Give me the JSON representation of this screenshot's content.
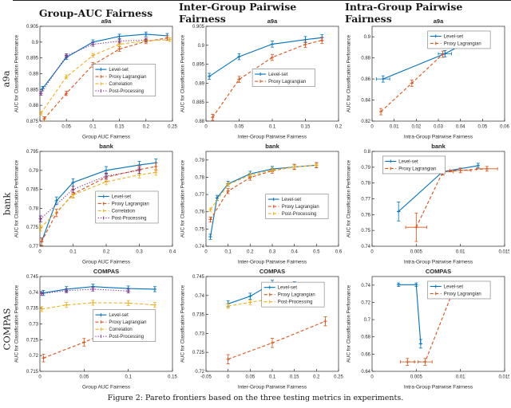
{
  "page": {
    "column_headers": [
      "Group-AUC Fairness",
      "Inter-Group Pairwise Fairness",
      "Intra-Group Pairwise Fairness"
    ],
    "row_labels": [
      "a9a",
      "bank",
      "COMPAS"
    ],
    "caption": "Figure 2: Pareto frontiers based on the three testing metrics in experiments."
  },
  "palette": {
    "level_set": "#0072BD",
    "proxy": "#D95319",
    "correlation": "#EDB120",
    "post": "#7E2F8E"
  },
  "chart_data": [
    {
      "type": "line",
      "title": "a9a",
      "xlabel": "Group AUC Fairness",
      "ylabel": "AUC for Classification Performance",
      "xlim": [
        0,
        0.25
      ],
      "xticks": [
        0,
        0.05,
        0.1,
        0.15,
        0.2,
        0.25
      ],
      "ylim": [
        0.875,
        0.905
      ],
      "yticks": [
        0.875,
        0.88,
        0.885,
        0.89,
        0.895,
        0.9,
        0.905
      ],
      "legend": {
        "x": 0.4,
        "y": 0.4
      },
      "series": [
        {
          "name": "Level-set",
          "style": "level_set",
          "x": [
            0.005,
            0.05,
            0.1,
            0.15,
            0.2,
            0.24
          ],
          "y": [
            0.8853,
            0.8952,
            0.9,
            0.9018,
            0.9025,
            0.902
          ],
          "yerr": 0.0007
        },
        {
          "name": "Proxy Lagrangian",
          "style": "proxy",
          "x": [
            0.008,
            0.05,
            0.1,
            0.15,
            0.2,
            0.24
          ],
          "y": [
            0.8757,
            0.8838,
            0.8928,
            0.8978,
            0.9002,
            0.9013
          ],
          "yerr": 0.0007
        },
        {
          "name": "Correlation",
          "style": "correlation",
          "x": [
            0.002,
            0.05,
            0.1,
            0.15,
            0.2,
            0.245
          ],
          "y": [
            0.8775,
            0.889,
            0.8958,
            0.8993,
            0.9004,
            0.9008
          ],
          "yerr": 0.0006
        },
        {
          "name": "Post-Processing",
          "style": "post",
          "x": [
            0.002,
            0.05,
            0.1,
            0.15,
            0.2
          ],
          "y": [
            0.8838,
            0.8957,
            0.8993,
            0.9003,
            0.9007
          ],
          "yerr": 0.0006
        }
      ]
    },
    {
      "type": "line",
      "title": "a9a",
      "xlabel": "Inter-Group Pairwise Fairness",
      "ylabel": "AUC for Classification Performance",
      "xlim": [
        0,
        0.2
      ],
      "xticks": [
        0,
        0.05,
        0.1,
        0.15,
        0.2
      ],
      "ylim": [
        0.88,
        0.905
      ],
      "yticks": [
        0.88,
        0.885,
        0.89,
        0.895,
        0.9,
        0.905
      ],
      "legend": {
        "x": 0.35,
        "y": 0.45
      },
      "series": [
        {
          "name": "Level-set",
          "style": "level_set",
          "x": [
            0.005,
            0.05,
            0.1,
            0.15,
            0.175
          ],
          "y": [
            0.8918,
            0.897,
            0.9003,
            0.9015,
            0.902
          ],
          "yerr": 0.0008
        },
        {
          "name": "Proxy Lagrangian",
          "style": "proxy",
          "x": [
            0.01,
            0.05,
            0.1,
            0.15,
            0.175
          ],
          "y": [
            0.881,
            0.891,
            0.8968,
            0.9002,
            0.9013
          ],
          "yerr": 0.0008
        }
      ]
    },
    {
      "type": "line",
      "title": "a9a",
      "xlabel": "Intra-Group Pairwise Fairness",
      "ylabel": "AUC for Classification Performance",
      "xlim": [
        0,
        0.06
      ],
      "xticks": [
        0,
        0.01,
        0.02,
        0.03,
        0.04,
        0.05,
        0.06
      ],
      "ylim": [
        0.82,
        0.91
      ],
      "yticks": [
        0.82,
        0.84,
        0.86,
        0.88,
        0.9
      ],
      "legend": {
        "x": 0.42,
        "y": 0.05
      },
      "series": [
        {
          "name": "Level-set",
          "style": "level_set",
          "x": [
            0.005,
            0.033,
            0.048
          ],
          "y": [
            0.86,
            0.884,
            0.9005
          ],
          "yerr": 0.003,
          "xerr": 0.003
        },
        {
          "name": "Proxy Lagrangian",
          "style": "proxy",
          "x": [
            0.004,
            0.018,
            0.032
          ],
          "y": [
            0.829,
            0.856,
            0.8835
          ],
          "yerr": 0.003
        }
      ]
    },
    {
      "type": "line",
      "title": "bank",
      "xlabel": "Group AUC Fairness",
      "ylabel": "AUC for Classification Performance",
      "xlim": [
        0,
        0.4
      ],
      "xticks": [
        0,
        0.1,
        0.2,
        0.3,
        0.4
      ],
      "ylim": [
        0.77,
        0.795
      ],
      "yticks": [
        0.77,
        0.775,
        0.78,
        0.785,
        0.79,
        0.795
      ],
      "legend": {
        "x": 0.42,
        "y": 0.42
      },
      "series": [
        {
          "name": "Level-set",
          "style": "level_set",
          "x": [
            0.005,
            0.05,
            0.1,
            0.2,
            0.3,
            0.35
          ],
          "y": [
            0.7712,
            0.782,
            0.7868,
            0.79,
            0.7914,
            0.792
          ],
          "yerr": 0.001
        },
        {
          "name": "Proxy Lagrangian",
          "style": "proxy",
          "x": [
            0.005,
            0.05,
            0.1,
            0.2,
            0.3,
            0.35
          ],
          "y": [
            0.7712,
            0.7788,
            0.7838,
            0.7882,
            0.7902,
            0.791
          ],
          "yerr": 0.001
        },
        {
          "name": "Correlation",
          "style": "correlation",
          "x": [
            0.002,
            0.1,
            0.2,
            0.3,
            0.35
          ],
          "y": [
            0.7748,
            0.7835,
            0.787,
            0.7888,
            0.7895
          ],
          "yerr": 0.0008
        },
        {
          "name": "Post-Processing",
          "style": "post",
          "x": [
            0.002,
            0.1,
            0.2,
            0.3
          ],
          "y": [
            0.7772,
            0.785,
            0.7885,
            0.79
          ],
          "yerr": 0.0008
        }
      ]
    },
    {
      "type": "line",
      "title": "bank",
      "xlabel": "Inter-Group Pairwise Fairness",
      "ylabel": "AUC for Classification Performance",
      "xlim": [
        0,
        0.6
      ],
      "xticks": [
        0,
        0.1,
        0.2,
        0.3,
        0.4,
        0.5,
        0.6
      ],
      "ylim": [
        0.74,
        0.795
      ],
      "yticks": [
        0.74,
        0.75,
        0.76,
        0.77,
        0.78,
        0.79
      ],
      "legend": {
        "x": 0.45,
        "y": 0.45
      },
      "series": [
        {
          "name": "Level-set",
          "style": "level_set",
          "x": [
            0.02,
            0.05,
            0.1,
            0.2,
            0.3,
            0.4,
            0.5
          ],
          "y": [
            0.7455,
            0.768,
            0.7762,
            0.782,
            0.7848,
            0.786,
            0.787
          ],
          "yerr": 0.0015
        },
        {
          "name": "Proxy Lagrangian",
          "style": "proxy",
          "x": [
            0.02,
            0.1,
            0.2,
            0.3,
            0.4,
            0.5
          ],
          "y": [
            0.7555,
            0.772,
            0.7798,
            0.7838,
            0.786,
            0.787
          ],
          "yerr": 0.0015
        },
        {
          "name": "Post-Processing",
          "style": "correlation",
          "x": [
            0.02,
            0.1,
            0.2,
            0.3,
            0.4,
            0.5
          ],
          "y": [
            0.7612,
            0.7758,
            0.7812,
            0.7842,
            0.786,
            0.787
          ],
          "yerr": 0.001
        }
      ]
    },
    {
      "type": "line",
      "title": "bank",
      "xlabel": "Intra-Group Pairwise Fairness",
      "ylabel": "AUC for Classification Performance",
      "xlim": [
        0,
        0.015
      ],
      "xticks": [
        0,
        0.005,
        0.01,
        0.015
      ],
      "ylim": [
        0.74,
        0.8
      ],
      "yticks": [
        0.74,
        0.75,
        0.76,
        0.77,
        0.78,
        0.79,
        0.8
      ],
      "legend": {
        "x": 0.08,
        "y": 0.05
      },
      "series": [
        {
          "name": "Level-set",
          "style": "level_set",
          "x": [
            0.003,
            0.008,
            0.012
          ],
          "y": [
            0.762,
            0.7872,
            0.791
          ],
          "yerr": [
            0.006,
            0.002,
            0.0015
          ]
        },
        {
          "name": "Proxy Lagrangian",
          "style": "proxy",
          "x": [
            0.005,
            0.008,
            0.01,
            0.013
          ],
          "y": [
            0.752,
            0.787,
            0.788,
            0.789
          ],
          "yerr": [
            0.009,
            0.002,
            0.0015,
            0.0015
          ],
          "xerr": 0.0012
        }
      ]
    },
    {
      "type": "line",
      "title": "COMPAS",
      "xlabel": "Group AUC Fairness",
      "ylabel": "AUC for Classification Performance",
      "xlim": [
        0,
        0.15
      ],
      "xticks": [
        0,
        0.05,
        0.1,
        0.15
      ],
      "ylim": [
        0.715,
        0.745
      ],
      "yticks": [
        0.715,
        0.72,
        0.725,
        0.73,
        0.735,
        0.74,
        0.745
      ],
      "legend": {
        "x": 0.4,
        "y": 0.35
      },
      "series": [
        {
          "name": "Level-set",
          "style": "level_set",
          "x": [
            0.004,
            0.03,
            0.06,
            0.1,
            0.13
          ],
          "y": [
            0.7398,
            0.741,
            0.7418,
            0.7412,
            0.741
          ],
          "yerr": 0.0008
        },
        {
          "name": "Proxy Lagrangian",
          "style": "proxy",
          "x": [
            0.004,
            0.05,
            0.08,
            0.11
          ],
          "y": [
            0.7192,
            0.7242,
            0.7278,
            0.732
          ],
          "yerr": 0.0012
        },
        {
          "name": "Correlation",
          "style": "correlation",
          "x": [
            0.002,
            0.03,
            0.06,
            0.1,
            0.13
          ],
          "y": [
            0.7347,
            0.736,
            0.7367,
            0.7366,
            0.736
          ],
          "yerr": 0.0008
        },
        {
          "name": "Post-Processing",
          "style": "post",
          "x": [
            0.002,
            0.03,
            0.06,
            0.1
          ],
          "y": [
            0.7396,
            0.7405,
            0.741,
            0.7404
          ],
          "yerr": 0.0006
        }
      ]
    },
    {
      "type": "line",
      "title": "COMPAS",
      "xlabel": "Inter-Group Pairwise Fairness",
      "ylabel": "AUC for Classification Performance",
      "xlim": [
        -0.05,
        0.25
      ],
      "xticks": [
        -0.05,
        0,
        0.05,
        0.1,
        0.15,
        0.2,
        0.25
      ],
      "ylim": [
        0.72,
        0.745
      ],
      "yticks": [
        0.72,
        0.725,
        0.73,
        0.735,
        0.74,
        0.745
      ],
      "legend": {
        "x": 0.42,
        "y": 0.06
      },
      "series": [
        {
          "name": "Level-set",
          "style": "level_set",
          "x": [
            0,
            0.05,
            0.1,
            0.15,
            0.2
          ],
          "y": [
            0.7378,
            0.7398,
            0.7432,
            0.7428,
            0.7422
          ],
          "yerr": 0.0008
        },
        {
          "name": "Proxy Lagrangian",
          "style": "proxy",
          "x": [
            0,
            0.1,
            0.22
          ],
          "y": [
            0.7232,
            0.7275,
            0.7332
          ],
          "yerr": 0.0012
        },
        {
          "name": "Post-Processing",
          "style": "correlation",
          "x": [
            0,
            0.05,
            0.1,
            0.15,
            0.2
          ],
          "y": [
            0.7372,
            0.7382,
            0.7392,
            0.7398,
            0.7398
          ],
          "yerr": 0.0006
        }
      ]
    },
    {
      "type": "line",
      "title": "COMPAS",
      "xlabel": "Intra-Group Pairwise Fairness",
      "ylabel": "AUC for Classification Performance",
      "xlim": [
        0,
        0.015
      ],
      "xticks": [
        0,
        0.005,
        0.01,
        0.015
      ],
      "ylim": [
        0.64,
        0.75
      ],
      "yticks": [
        0.64,
        0.66,
        0.68,
        0.7,
        0.72,
        0.74
      ],
      "legend": {
        "x": 0.42,
        "y": 0.05
      },
      "series": [
        {
          "name": "Level-set",
          "style": "level_set",
          "x": [
            0.003,
            0.005,
            0.0055
          ],
          "y": [
            0.7405,
            0.7405,
            0.672
          ],
          "yerr": [
            0.002,
            0.002,
            0.005
          ]
        },
        {
          "name": "Proxy Lagrangian",
          "style": "proxy",
          "x": [
            0.004,
            0.006,
            0.009,
            0.011
          ],
          "y": [
            0.651,
            0.651,
            0.729,
            0.729
          ],
          "yerr": [
            0.004,
            0.004,
            0.003,
            0.003
          ],
          "xerr": 0.0008
        }
      ]
    }
  ]
}
